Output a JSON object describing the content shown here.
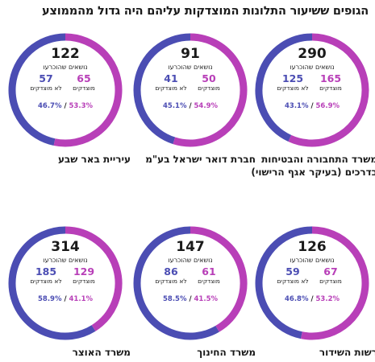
{
  "title": "הגופים ששיעור התלונות המוצדקות עליהם היה גדול מהממוצע",
  "colors": {
    "justified": "#b83fb8",
    "unjustified": "#4b4db3"
  },
  "labels": {
    "reported": "נושאים שהוכרעו",
    "justified": "מוצדקים",
    "unjustified": "לא מוצדקים"
  },
  "chart_data": [
    {
      "type": "pie",
      "name": "משרד התחבורה והבטיחות בדרכים (בעיקר אגף הרישוי)",
      "total": 290,
      "justified": 165,
      "unjustified": 125,
      "justified_pct": "56.9%",
      "unjustified_pct": "43.1%"
    },
    {
      "type": "pie",
      "name": "חברת דואר ישראל בע\"מ",
      "total": 91,
      "justified": 50,
      "unjustified": 41,
      "justified_pct": "54.9%",
      "unjustified_pct": "45.1%"
    },
    {
      "type": "pie",
      "name": "עיריית באר שבע",
      "total": 122,
      "justified": 65,
      "unjustified": 57,
      "justified_pct": "53.3%",
      "unjustified_pct": "46.7%"
    },
    {
      "type": "pie",
      "name": "רשות השידור",
      "total": 126,
      "justified": 67,
      "unjustified": 59,
      "justified_pct": "53.2%",
      "unjustified_pct": "46.8%"
    },
    {
      "type": "pie",
      "name": "משרד החינוך",
      "total": 147,
      "justified": 61,
      "unjustified": 86,
      "justified_pct": "41.5%",
      "unjustified_pct": "58.5%"
    },
    {
      "type": "pie",
      "name": "משרד האוצר",
      "total": 314,
      "justified": 129,
      "unjustified": 185,
      "justified_pct": "41.1%",
      "unjustified_pct": "58.9%"
    }
  ]
}
